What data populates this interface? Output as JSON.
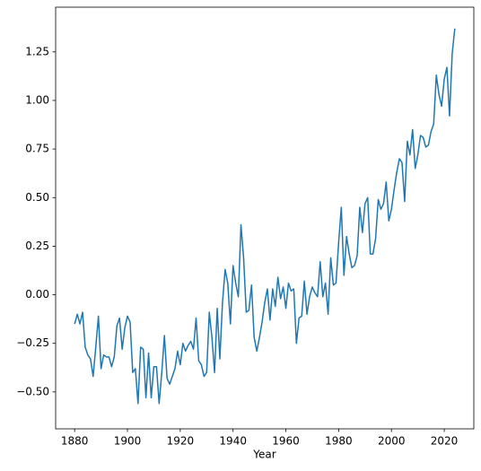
{
  "chart_data": {
    "type": "line",
    "xlabel": "Year",
    "x": [
      1880,
      1881,
      1882,
      1883,
      1884,
      1885,
      1886,
      1887,
      1888,
      1889,
      1890,
      1891,
      1892,
      1893,
      1894,
      1895,
      1896,
      1897,
      1898,
      1899,
      1900,
      1901,
      1902,
      1903,
      1904,
      1905,
      1906,
      1907,
      1908,
      1909,
      1910,
      1911,
      1912,
      1913,
      1914,
      1915,
      1916,
      1917,
      1918,
      1919,
      1920,
      1921,
      1922,
      1923,
      1924,
      1925,
      1926,
      1927,
      1928,
      1929,
      1930,
      1931,
      1932,
      1933,
      1934,
      1935,
      1936,
      1937,
      1938,
      1939,
      1940,
      1941,
      1942,
      1943,
      1944,
      1945,
      1946,
      1947,
      1948,
      1949,
      1950,
      1951,
      1952,
      1953,
      1954,
      1955,
      1956,
      1957,
      1958,
      1959,
      1960,
      1961,
      1962,
      1963,
      1964,
      1965,
      1966,
      1967,
      1968,
      1969,
      1970,
      1971,
      1972,
      1973,
      1974,
      1975,
      1976,
      1977,
      1978,
      1979,
      1980,
      1981,
      1982,
      1983,
      1984,
      1985,
      1986,
      1987,
      1988,
      1989,
      1990,
      1991,
      1992,
      1993,
      1994,
      1995,
      1996,
      1997,
      1998,
      1999,
      2000,
      2001,
      2002,
      2003,
      2004,
      2005,
      2006,
      2007,
      2008,
      2009,
      2010,
      2011,
      2012,
      2013,
      2014,
      2015,
      2016,
      2017,
      2018,
      2019,
      2020,
      2021,
      2022,
      2023,
      2024
    ],
    "values": [
      -0.15,
      -0.1,
      -0.15,
      -0.09,
      -0.27,
      -0.31,
      -0.33,
      -0.42,
      -0.27,
      -0.11,
      -0.38,
      -0.31,
      -0.32,
      -0.32,
      -0.37,
      -0.32,
      -0.16,
      -0.12,
      -0.28,
      -0.17,
      -0.11,
      -0.14,
      -0.4,
      -0.38,
      -0.56,
      -0.27,
      -0.28,
      -0.53,
      -0.3,
      -0.53,
      -0.37,
      -0.37,
      -0.56,
      -0.4,
      -0.21,
      -0.43,
      -0.46,
      -0.42,
      -0.38,
      -0.29,
      -0.36,
      -0.25,
      -0.29,
      -0.26,
      -0.24,
      -0.28,
      -0.12,
      -0.34,
      -0.36,
      -0.42,
      -0.4,
      -0.09,
      -0.22,
      -0.4,
      -0.07,
      -0.33,
      -0.04,
      0.13,
      0.06,
      -0.15,
      0.15,
      0.06,
      -0.01,
      0.36,
      0.19,
      -0.09,
      -0.08,
      0.05,
      -0.22,
      -0.29,
      -0.22,
      -0.14,
      -0.04,
      0.03,
      -0.13,
      0.03,
      -0.06,
      0.09,
      -0.02,
      0.04,
      -0.07,
      0.06,
      0.02,
      0.03,
      -0.25,
      -0.12,
      -0.11,
      0.07,
      -0.1,
      -0.01,
      0.04,
      0.01,
      -0.01,
      0.17,
      -0.01,
      0.06,
      -0.1,
      0.19,
      0.05,
      0.06,
      0.27,
      0.45,
      0.1,
      0.3,
      0.21,
      0.14,
      0.15,
      0.2,
      0.45,
      0.32,
      0.47,
      0.5,
      0.21,
      0.21,
      0.29,
      0.49,
      0.44,
      0.47,
      0.58,
      0.38,
      0.44,
      0.54,
      0.63,
      0.7,
      0.68,
      0.48,
      0.79,
      0.72,
      0.85,
      0.65,
      0.72,
      0.82,
      0.81,
      0.76,
      0.77,
      0.84,
      0.88,
      1.13,
      1.03,
      0.97,
      1.11,
      1.17,
      0.92,
      1.24,
      1.37
    ],
    "color": "#1f77b4",
    "xlim": [
      1872.8,
      2031.2
    ],
    "xticks": [
      1880,
      1900,
      1920,
      1940,
      1960,
      1980,
      2000,
      2020
    ],
    "ylim": [
      -0.69,
      1.48
    ],
    "yticks": [
      {
        "value": -0.5,
        "label": "−0.50"
      },
      {
        "value": -0.25,
        "label": "−0.25"
      },
      {
        "value": 0,
        "label": "0.00"
      },
      {
        "value": 0.25,
        "label": "0.25"
      },
      {
        "value": 0.5,
        "label": "0.50"
      },
      {
        "value": 0.75,
        "label": "0.75"
      },
      {
        "value": 1.0,
        "label": "1.00"
      },
      {
        "value": 1.25,
        "label": "1.25"
      }
    ],
    "grid": false
  }
}
